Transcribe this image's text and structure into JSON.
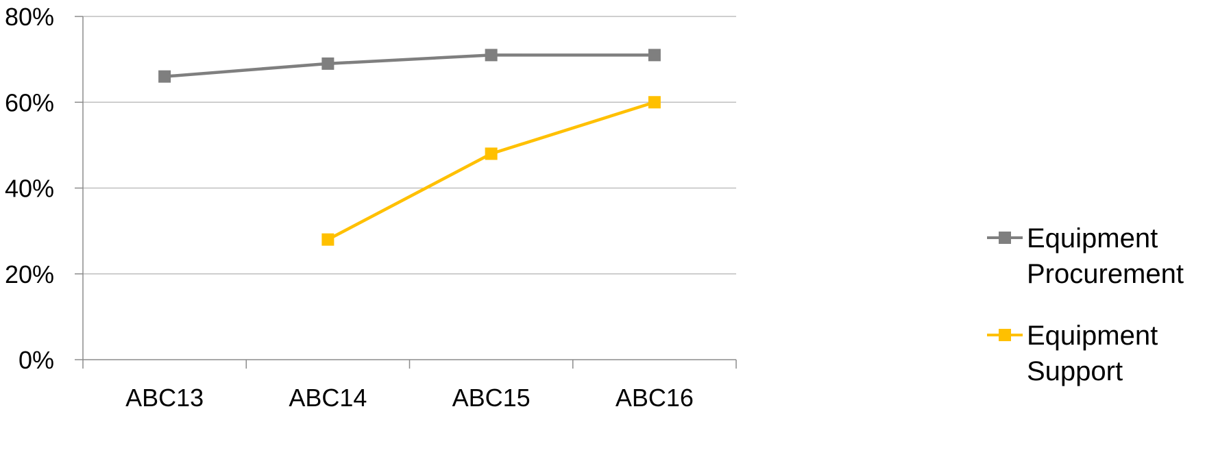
{
  "chart_data": {
    "type": "line",
    "categories": [
      "ABC13",
      "ABC14",
      "ABC15",
      "ABC16"
    ],
    "series": [
      {
        "name": "Equipment Procurement",
        "name_lines": [
          "Equipment",
          "Procurement"
        ],
        "color": "#7f7f7f",
        "values": [
          66,
          69,
          71,
          71
        ]
      },
      {
        "name": "Equipment Support",
        "name_lines": [
          "Equipment",
          "Support"
        ],
        "color": "#ffc000",
        "values": [
          null,
          28,
          48,
          60
        ]
      }
    ],
    "y_ticks": [
      "0%",
      "20%",
      "40%",
      "60%",
      "80%"
    ],
    "ylim": [
      0,
      80
    ],
    "y_unit": "%",
    "grid": true,
    "legend": "right",
    "title": "",
    "xlabel": "",
    "ylabel": ""
  }
}
